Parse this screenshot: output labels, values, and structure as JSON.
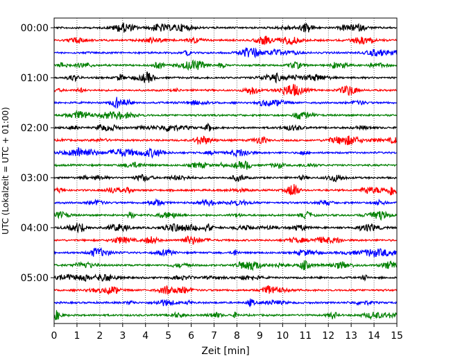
{
  "chart_data": {
    "type": "line",
    "title": "",
    "xlabel": "Zeit  [min]",
    "ylabel": "UTC (Lokalzeit = UTC + 01:00)",
    "xlim": [
      0,
      15
    ],
    "x_ticks": [
      "0",
      "1",
      "2",
      "3",
      "4",
      "5",
      "6",
      "7",
      "8",
      "9",
      "10",
      "11",
      "12",
      "13",
      "14",
      "15"
    ],
    "y_tick_labels": [
      "00:00",
      "01:00",
      "02:00",
      "03:00",
      "04:00",
      "05:00"
    ],
    "trace_interval_minutes": 15,
    "trace_start": "00:00",
    "trace_end": "05:45",
    "grid": "vertical dotted",
    "colors": [
      "#000000",
      "#ff0000",
      "#0000ff",
      "#008000"
    ],
    "series": [
      {
        "start": "00:00",
        "color": "#000000"
      },
      {
        "start": "00:15",
        "color": "#ff0000"
      },
      {
        "start": "00:30",
        "color": "#0000ff"
      },
      {
        "start": "00:45",
        "color": "#008000"
      },
      {
        "start": "01:00",
        "color": "#000000"
      },
      {
        "start": "01:15",
        "color": "#ff0000"
      },
      {
        "start": "01:30",
        "color": "#0000ff"
      },
      {
        "start": "01:45",
        "color": "#008000"
      },
      {
        "start": "02:00",
        "color": "#000000"
      },
      {
        "start": "02:15",
        "color": "#ff0000"
      },
      {
        "start": "02:30",
        "color": "#0000ff"
      },
      {
        "start": "02:45",
        "color": "#008000"
      },
      {
        "start": "03:00",
        "color": "#000000"
      },
      {
        "start": "03:15",
        "color": "#ff0000"
      },
      {
        "start": "03:30",
        "color": "#0000ff"
      },
      {
        "start": "03:45",
        "color": "#008000"
      },
      {
        "start": "04:00",
        "color": "#000000"
      },
      {
        "start": "04:15",
        "color": "#ff0000"
      },
      {
        "start": "04:30",
        "color": "#0000ff"
      },
      {
        "start": "04:45",
        "color": "#008000"
      },
      {
        "start": "05:00",
        "color": "#000000"
      },
      {
        "start": "05:15",
        "color": "#ff0000"
      },
      {
        "start": "05:30",
        "color": "#0000ff"
      },
      {
        "start": "05:45",
        "color": "#008000"
      }
    ]
  }
}
